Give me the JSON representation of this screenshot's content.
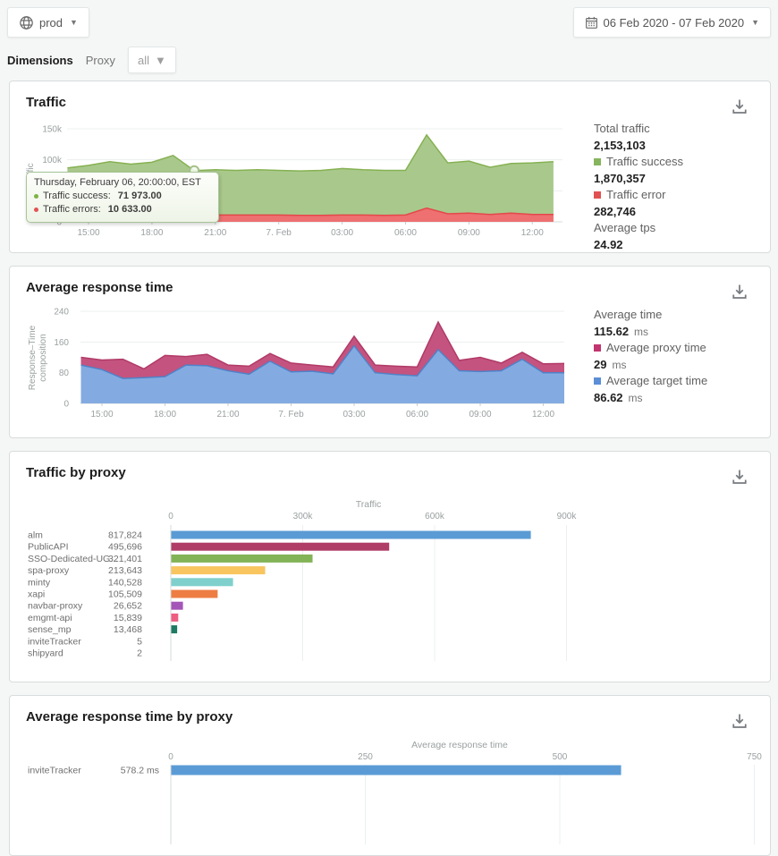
{
  "header": {
    "environment": "prod",
    "date_range": "06 Feb 2020 - 07 Feb 2020"
  },
  "filters": {
    "dimensions_label": "Dimensions",
    "dimension_name": "Proxy",
    "dimension_value": "all"
  },
  "cards": {
    "traffic": {
      "title": "Traffic",
      "stats": [
        {
          "label": "Total traffic",
          "value": "2,153,103"
        },
        {
          "label": "Traffic success",
          "value": "1,870,357",
          "swatch": "#86b55d"
        },
        {
          "label": "Traffic error",
          "value": "282,746",
          "swatch": "#e25252"
        },
        {
          "label": "Average tps",
          "value": "24.92"
        }
      ],
      "tooltip": {
        "title": "Thursday, February 06, 20:00:00, EST",
        "rows": [
          {
            "label": "Traffic success:",
            "value": "71 973.00",
            "color": "#7cb342"
          },
          {
            "label": "Traffic errors:",
            "value": "10 633.00",
            "color": "#e25252"
          }
        ]
      }
    },
    "response": {
      "title": "Average response time",
      "stats": [
        {
          "label": "Average time",
          "value": "115.62",
          "unit": "ms"
        },
        {
          "label": "Average proxy time",
          "value": "29",
          "unit": "ms",
          "swatch": "#c2356e"
        },
        {
          "label": "Average target time",
          "value": "86.62",
          "unit": "ms",
          "swatch": "#5b8ed6"
        }
      ]
    },
    "proxy_traffic": {
      "title": "Traffic by proxy"
    },
    "proxy_response": {
      "title": "Average response time by proxy"
    }
  },
  "chart_data": [
    {
      "type": "area",
      "title": "Traffic",
      "ylabel": "Traffic",
      "stacked": true,
      "x": [
        "14:00",
        "15:00",
        "16:00",
        "17:00",
        "18:00",
        "19:00",
        "20:00",
        "21:00",
        "22:00",
        "23:00",
        "00:00",
        "01:00",
        "02:00",
        "03:00",
        "04:00",
        "05:00",
        "06:00",
        "07:00",
        "08:00",
        "09:00",
        "10:00",
        "11:00",
        "12:00",
        "13:00"
      ],
      "x_tick_idx": [
        1,
        4,
        7,
        10,
        13,
        16,
        19,
        22
      ],
      "x_tick_labels": [
        "15:00",
        "18:00",
        "21:00",
        "7. Feb",
        "03:00",
        "06:00",
        "09:00",
        "12:00"
      ],
      "y_tick_values": [
        0,
        50000,
        100000,
        150000
      ],
      "y_tick_labels": [
        "0",
        "50k",
        "100k",
        "150k"
      ],
      "ylim": [
        0,
        150000
      ],
      "series": [
        {
          "name": "Traffic errors",
          "color": "#e4484a",
          "fill": "#ee7071",
          "values": [
            11000,
            11000,
            11500,
            11000,
            11500,
            12000,
            10633,
            11000,
            11000,
            11000,
            11000,
            10500,
            10500,
            11000,
            11000,
            10500,
            11000,
            22000,
            13000,
            14000,
            12000,
            14000,
            12000,
            12000
          ]
        },
        {
          "name": "Traffic success",
          "color": "#86b152",
          "fill": "#a9c98c",
          "values": [
            76000,
            80000,
            85500,
            82000,
            84500,
            95000,
            71973,
            73000,
            72000,
            73000,
            72000,
            71500,
            72500,
            75000,
            73000,
            72500,
            72000,
            118000,
            82000,
            84000,
            76000,
            80000,
            83000,
            85000
          ]
        }
      ],
      "highlight_index": 6
    },
    {
      "type": "area",
      "title": "Average response time",
      "ylabel": "Response–Time composition",
      "stacked": true,
      "x": [
        "14:00",
        "15:00",
        "16:00",
        "17:00",
        "18:00",
        "19:00",
        "20:00",
        "21:00",
        "22:00",
        "23:00",
        "00:00",
        "01:00",
        "02:00",
        "03:00",
        "04:00",
        "05:00",
        "06:00",
        "07:00",
        "08:00",
        "09:00",
        "10:00",
        "11:00",
        "12:00",
        "13:00"
      ],
      "x_tick_idx": [
        1,
        4,
        7,
        10,
        13,
        16,
        19,
        22
      ],
      "x_tick_labels": [
        "15:00",
        "18:00",
        "21:00",
        "7. Feb",
        "03:00",
        "06:00",
        "09:00",
        "12:00"
      ],
      "y_tick_values": [
        0,
        80,
        160,
        240
      ],
      "y_tick_labels": [
        "0",
        "80",
        "160",
        "240"
      ],
      "ylim": [
        0,
        240
      ],
      "series": [
        {
          "name": "Average target time",
          "color": "#4f82c8",
          "fill": "#83abe1",
          "values": [
            100,
            88,
            65,
            67,
            70,
            100,
            98,
            85,
            76,
            110,
            82,
            84,
            77,
            150,
            80,
            75,
            72,
            140,
            85,
            83,
            85,
            115,
            80,
            80
          ]
        },
        {
          "name": "Average proxy time",
          "color": "#b13a67",
          "fill": "#c4537f",
          "values": [
            20,
            25,
            50,
            23,
            55,
            22,
            30,
            15,
            21,
            20,
            23,
            16,
            18,
            25,
            20,
            22,
            23,
            72,
            27,
            37,
            20,
            18,
            23,
            24
          ]
        }
      ]
    },
    {
      "type": "bar",
      "title": "Traffic by proxy",
      "xlabel": "Traffic",
      "x_tick_labels": [
        "0",
        "300k",
        "600k",
        "900k"
      ],
      "x_tick_values": [
        0,
        300000,
        600000,
        900000
      ],
      "categories": [
        "alm",
        "PublicAPI",
        "SSO-Dedicated-UG...",
        "spa-proxy",
        "minty",
        "xapi",
        "navbar-proxy",
        "emgmt-api",
        "sense_mp",
        "inviteTracker",
        "shipyard"
      ],
      "values": [
        817824,
        495696,
        321401,
        213643,
        140528,
        105509,
        26652,
        15839,
        13468,
        5,
        2
      ],
      "value_labels": [
        "817,824",
        "495,696",
        "321,401",
        "213,643",
        "140,528",
        "105,509",
        "26,652",
        "15,839",
        "13,468",
        "5",
        "2"
      ],
      "colors": [
        "#5b9bd5",
        "#b03d66",
        "#82b356",
        "#f8c55f",
        "#7fd0cc",
        "#ed7d43",
        "#a455b8",
        "#ed5e80",
        "#1e7a62",
        "#5b9bd5",
        "#b03d66"
      ]
    },
    {
      "type": "bar",
      "title": "Average response time by proxy",
      "xlabel": "Average response time",
      "x_tick_labels": [
        "0",
        "250",
        "500",
        "750"
      ],
      "x_tick_values": [
        0,
        250,
        500,
        750
      ],
      "categories": [
        "inviteTracker"
      ],
      "values": [
        578.2
      ],
      "value_labels": [
        "578.2 ms"
      ],
      "colors": [
        "#5b9bd5"
      ]
    }
  ]
}
